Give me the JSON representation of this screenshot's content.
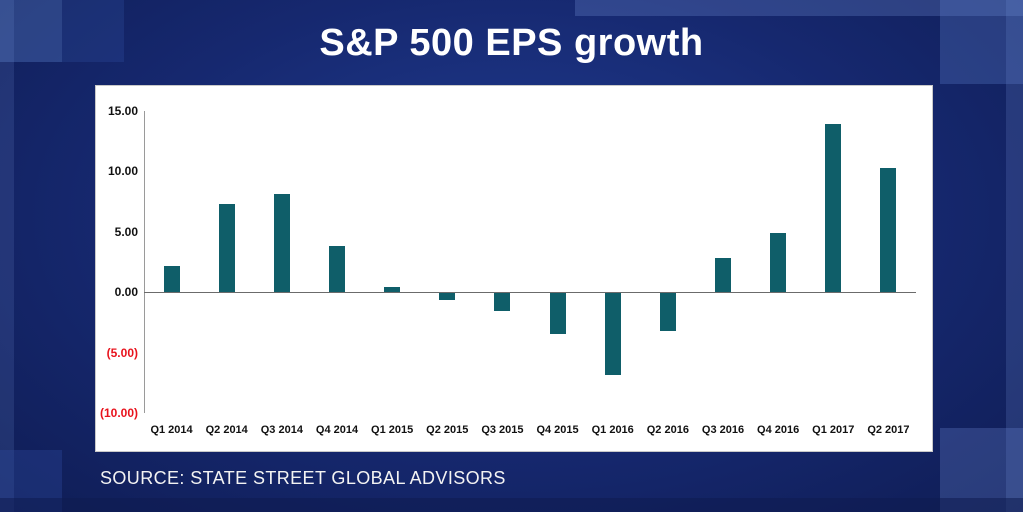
{
  "title": "S&P 500 EPS growth",
  "source": "SOURCE: STATE STREET GLOBAL ADVISORS",
  "colors": {
    "background_base": "#16286f",
    "bar": "#0f5e69",
    "negative_tick": "#e8131d",
    "panel": "#ffffff"
  },
  "chart_data": {
    "type": "bar",
    "title": "S&P 500 EPS growth",
    "categories": [
      "Q1 2014",
      "Q2 2014",
      "Q3 2014",
      "Q4 2014",
      "Q1 2015",
      "Q2 2015",
      "Q3 2015",
      "Q4 2015",
      "Q1 2016",
      "Q2 2016",
      "Q3 2016",
      "Q4 2016",
      "Q1 2017",
      "Q2 2017"
    ],
    "values": [
      2.2,
      7.3,
      8.1,
      3.8,
      0.4,
      -0.6,
      -1.5,
      -3.4,
      -6.8,
      -3.1,
      2.8,
      4.9,
      13.9,
      10.3
    ],
    "xlabel": "",
    "ylabel": "",
    "ylim": [
      -10,
      15
    ],
    "yticks": [
      15,
      10,
      5,
      0,
      -5,
      -10
    ],
    "ytick_labels": [
      "15.00",
      "10.00",
      "5.00",
      "0.00",
      "(5.00)",
      "(10.00)"
    ],
    "grid": false,
    "legend": false,
    "bar_color": "#0f5e69"
  }
}
